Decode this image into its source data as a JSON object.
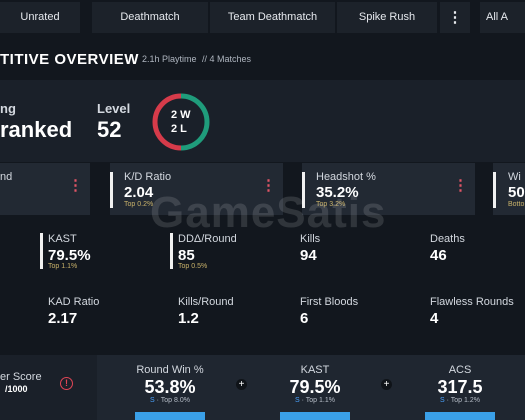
{
  "tabs": [
    "Unrated",
    "Deathmatch",
    "Team Deathmatch",
    "Spike Rush"
  ],
  "all_button": "All A",
  "overview": {
    "title": "TITIVE OVERVIEW",
    "playtime": "2.1h Playtime",
    "matches": "// 4 Matches"
  },
  "rank": {
    "label": "ng",
    "value": "ranked"
  },
  "level": {
    "label": "Level",
    "value": "52"
  },
  "record": {
    "wins": "2 W",
    "losses": "2 L"
  },
  "top_stats": [
    {
      "label": "nd"
    },
    {
      "label": "K/D Ratio",
      "value": "2.04",
      "rank": "Top 0.2%"
    },
    {
      "label": "Headshot %",
      "value": "35.2%",
      "rank": "Top 3.2%"
    },
    {
      "label": "Wi",
      "value": "50",
      "rank": "Botto"
    }
  ],
  "stats_row1": [
    {
      "label": "KAST",
      "value": "79.5%",
      "rank": "Top 1.1%"
    },
    {
      "label": "DDΔ/Round",
      "value": "85",
      "rank": "Top 0.5%"
    },
    {
      "label": "Kills",
      "value": "94"
    },
    {
      "label": "Deaths",
      "value": "46"
    }
  ],
  "stats_row2": [
    {
      "label": "KAD Ratio",
      "value": "2.17"
    },
    {
      "label": "Kills/Round",
      "value": "1.2"
    },
    {
      "label": "First Bloods",
      "value": "6"
    },
    {
      "label": "Flawless Rounds",
      "value": "4"
    }
  ],
  "score": {
    "label": "er Score",
    "value": "/1000"
  },
  "bottom_stats": [
    {
      "label": "Round Win %",
      "value": "53.8%",
      "grade": "S",
      "rank": "· Top 8.0%"
    },
    {
      "label": "KAST",
      "value": "79.5%",
      "grade": "S",
      "rank": "· Top 1.1%"
    },
    {
      "label": "ACS",
      "value": "317.5",
      "grade": "S",
      "rank": "· Top 1.2%"
    }
  ],
  "watermark": "GameSatis"
}
